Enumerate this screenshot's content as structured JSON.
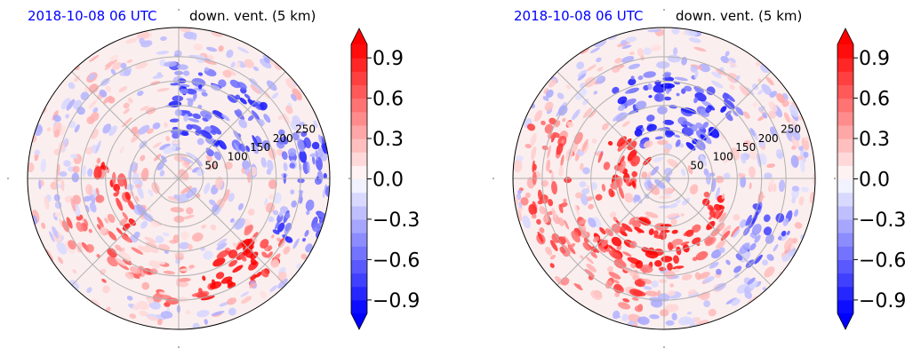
{
  "chart_data": [
    {
      "type": "heatmap",
      "projection": "polar",
      "title_left": "2018-10-08 06 UTC",
      "title_right": "down. vent. (5 km)",
      "title_left_color": "#0000ff",
      "radial_ticks": [
        "50",
        "100",
        "150",
        "200",
        "250"
      ],
      "radial_values": [
        50,
        100,
        150,
        200,
        250
      ],
      "rmax": 310,
      "grid": true,
      "colorbar": {
        "ticks": [
          "0.9",
          "0.6",
          "0.3",
          "0.0",
          "−0.3",
          "−0.6",
          "−0.9"
        ],
        "values": [
          0.9,
          0.6,
          0.3,
          0.0,
          -0.3,
          -0.6,
          -0.9
        ],
        "range": [
          -1.0,
          1.0
        ],
        "extend": "both",
        "colormap": "bwr"
      }
    },
    {
      "type": "heatmap",
      "projection": "polar",
      "title_left": "2018-10-08 06 UTC",
      "title_right": "down. vent. (5 km)",
      "title_left_color": "#0000ff",
      "radial_ticks": [
        "50",
        "100",
        "150",
        "200",
        "250"
      ],
      "radial_values": [
        50,
        100,
        150,
        200,
        250
      ],
      "rmax": 310,
      "grid": true,
      "colorbar": {
        "ticks": [
          "0.9",
          "0.6",
          "0.3",
          "0.0",
          "−0.3",
          "−0.6",
          "−0.9"
        ],
        "values": [
          0.9,
          0.6,
          0.3,
          0.0,
          -0.3,
          -0.6,
          -0.9
        ],
        "range": [
          -1.0,
          1.0
        ],
        "extend": "both",
        "colormap": "bwr"
      }
    }
  ]
}
